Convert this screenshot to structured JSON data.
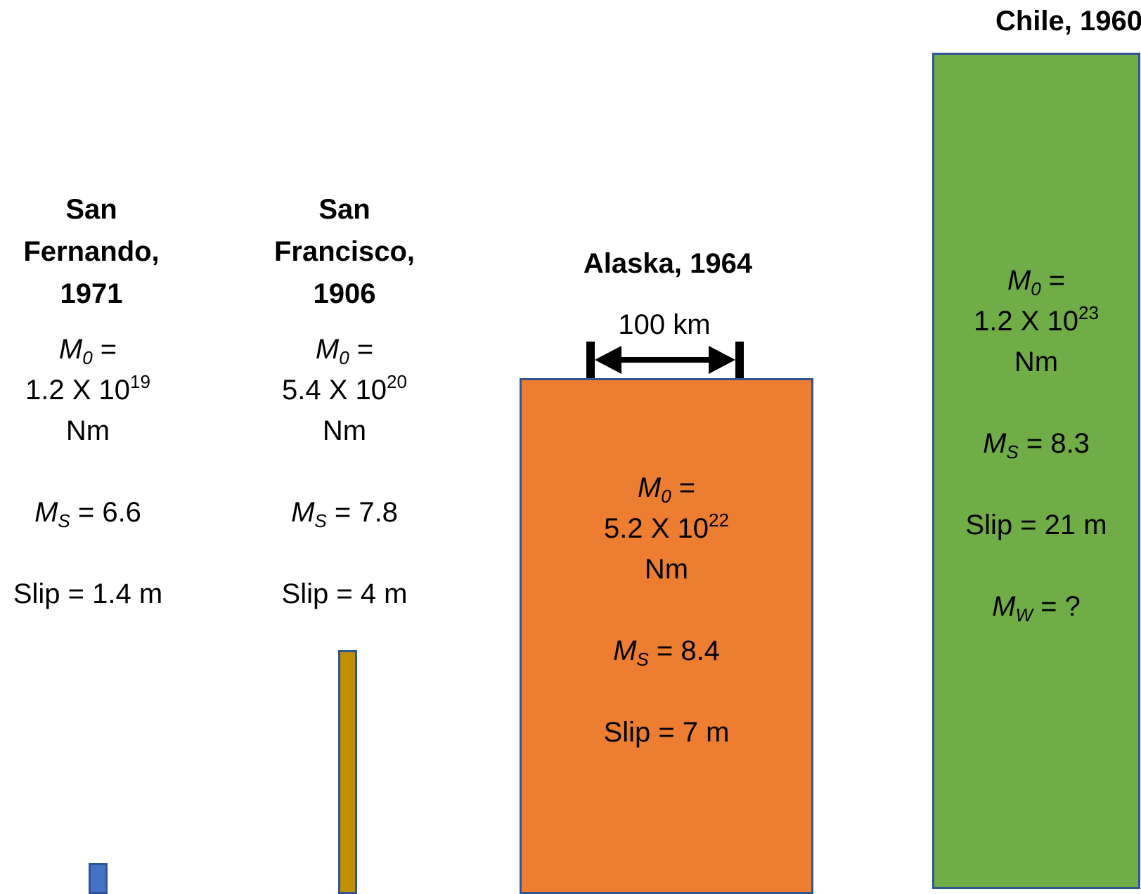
{
  "earthquakes": [
    {
      "title_lines": [
        "San",
        "Fernando,",
        "1971"
      ],
      "m0_label": "M",
      "m0_sub": "0",
      "eq": " =",
      "m0_mantissa": "1.2 X 10",
      "m0_exponent": "19",
      "m0_unit": "Nm",
      "ms_label": "M",
      "ms_sub": "S",
      "ms_value": " = 6.6",
      "slip": "Slip = 1.4 m",
      "color": "#4472c4"
    },
    {
      "title_lines": [
        "San",
        "Francisco,",
        "1906"
      ],
      "m0_label": "M",
      "m0_sub": "0",
      "eq": " =",
      "m0_mantissa": "5.4 X 10",
      "m0_exponent": "20",
      "m0_unit": "Nm",
      "ms_label": "M",
      "ms_sub": "S",
      "ms_value": " = 7.8",
      "slip": "Slip = 4 m",
      "color": "#bf9000"
    },
    {
      "title_lines": [
        "Alaska, 1964"
      ],
      "m0_label": "M",
      "m0_sub": "0",
      "eq": " =",
      "m0_mantissa": "5.2 X 10",
      "m0_exponent": "22",
      "m0_unit": "Nm",
      "ms_label": "M",
      "ms_sub": "S",
      "ms_value": " = 8.4",
      "slip": "Slip = 7 m",
      "color": "#ed7d31"
    },
    {
      "title_lines": [
        "Chile, 1960"
      ],
      "m0_label": "M",
      "m0_sub": "0",
      "eq": " =",
      "m0_mantissa": "1.2 X 10",
      "m0_exponent": "23",
      "m0_unit": "Nm",
      "ms_label": "M",
      "ms_sub": "S",
      "ms_value": " = 8.3",
      "slip": "Slip = 21 m",
      "mw_label": "M",
      "mw_sub": "W",
      "mw_value": " = ?",
      "color": "#70ad47"
    }
  ],
  "scale_bar": {
    "label": "100 km"
  }
}
